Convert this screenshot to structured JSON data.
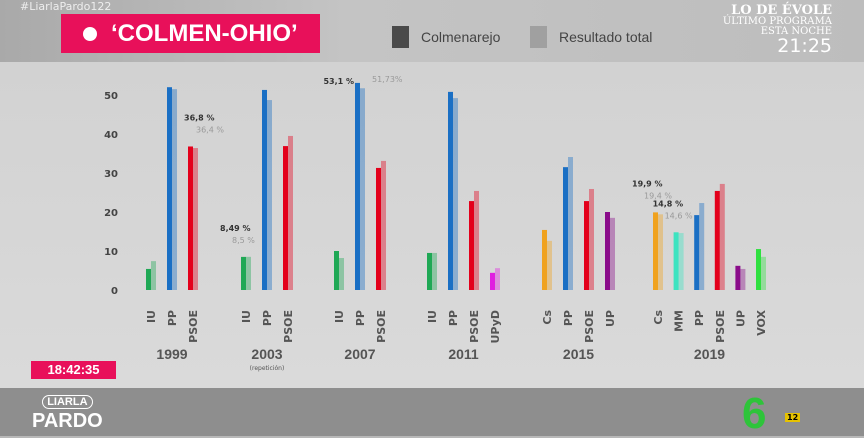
{
  "header": {
    "hashtag": "#LiarlaPardo122",
    "title": "‘COLMEN-OHIO’",
    "legend": [
      "Colmenarejo",
      "Resultado total"
    ]
  },
  "promo": {
    "show": "LO DE ÉVOLE",
    "line2": "ÚLTIMO PROGRAMA",
    "line3": "ESTA NOCHE",
    "time": "21:25"
  },
  "clock": "18:42:35",
  "logo": {
    "top": "LIARLA",
    "bottom": "PARDO"
  },
  "channel": {
    "name": "6",
    "rating": "12"
  },
  "colors": {
    "IU": "#1fa855",
    "PP": "#1a6fc4",
    "PSOE": "#e3001b",
    "UPyD": "#e01ee0",
    "Cs": "#f0a21e",
    "UP": "#8a0c8a",
    "MM": "#3de3c0",
    "VOX": "#2fe040",
    "colmen_legend": "#4a4a4a",
    "total_legend": "#a0a0a0"
  },
  "chart_data": {
    "type": "bar",
    "title": "‘COLMEN-OHIO’",
    "ylim": [
      0,
      55
    ],
    "yticks": [
      0,
      10,
      20,
      30,
      40,
      50
    ],
    "series_names": [
      "Colmenarejo",
      "Resultado total"
    ],
    "groups": [
      {
        "year": "1999",
        "note": "",
        "parties": [
          {
            "p": "IU",
            "c": 5.4,
            "t": 7.4
          },
          {
            "p": "PP",
            "c": 52,
            "t": 51.5
          },
          {
            "p": "PSOE",
            "c": 36.8,
            "t": 36.4,
            "lc": "36,8 %",
            "lt": "36,4 %"
          }
        ]
      },
      {
        "year": "2003",
        "note": "(repetición)",
        "parties": [
          {
            "p": "IU",
            "c": 8.49,
            "t": 8.5,
            "lc": "8,49 %",
            "lt": "8,5 %"
          },
          {
            "p": "PP",
            "c": 51.3,
            "t": 48.7
          },
          {
            "p": "PSOE",
            "c": 36.9,
            "t": 39.5
          }
        ]
      },
      {
        "year": "2007",
        "note": "",
        "parties": [
          {
            "p": "IU",
            "c": 10,
            "t": 8.2
          },
          {
            "p": "PP",
            "c": 53.1,
            "t": 51.73,
            "lc": "53,1 %",
            "lt": "51,73%"
          },
          {
            "p": "PSOE",
            "c": 31.3,
            "t": 33.1
          }
        ]
      },
      {
        "year": "2011",
        "note": "",
        "parties": [
          {
            "p": "IU",
            "c": 9.5,
            "t": 9.5
          },
          {
            "p": "PP",
            "c": 50.8,
            "t": 49.2
          },
          {
            "p": "PSOE",
            "c": 22.8,
            "t": 25.4
          },
          {
            "p": "UPyD",
            "c": 4.4,
            "t": 5.6
          }
        ]
      },
      {
        "year": "2015",
        "note": "",
        "parties": [
          {
            "p": "Cs",
            "c": 15.4,
            "t": 12.6
          },
          {
            "p": "PP",
            "c": 31.5,
            "t": 34.1
          },
          {
            "p": "PSOE",
            "c": 22.8,
            "t": 25.9
          },
          {
            "p": "UP",
            "c": 20,
            "t": 18.5
          }
        ]
      },
      {
        "year": "2019",
        "note": "",
        "parties": [
          {
            "p": "Cs",
            "c": 19.9,
            "t": 19.4,
            "lc": "19,9 %",
            "lt": "19,4 %"
          },
          {
            "p": "MM",
            "c": 14.8,
            "t": 14.6,
            "lc": "14,8 %",
            "lt": "14,6 %"
          },
          {
            "p": "PP",
            "c": 19.2,
            "t": 22.3
          },
          {
            "p": "PSOE",
            "c": 25.4,
            "t": 27.2
          },
          {
            "p": "UP",
            "c": 6.2,
            "t": 5.4
          },
          {
            "p": "VOX",
            "c": 10.5,
            "t": 8.5
          }
        ]
      }
    ]
  }
}
